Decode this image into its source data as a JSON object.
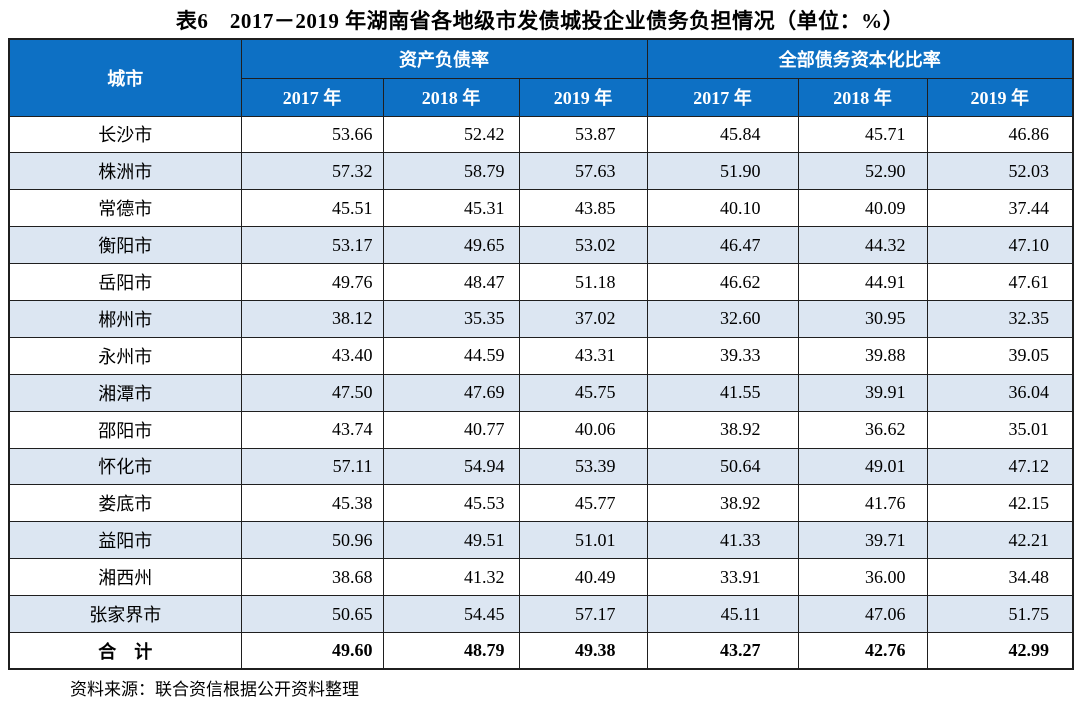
{
  "title": "表6　2017－2019 年湖南省各地级市发债城投企业债务负担情况（单位：%）",
  "source_note": "资料来源：联合资信根据公开资料整理",
  "colors": {
    "header_bg": "#0d70c4",
    "header_text": "#ffffff",
    "row_alt_bg": "#dce6f2",
    "border": "#1f1f1f"
  },
  "table": {
    "city_header": "城市",
    "groups": [
      {
        "label": "资产负债率",
        "years": [
          "2017 年",
          "2018 年",
          "2019 年"
        ]
      },
      {
        "label": "全部债务资本化比率",
        "years": [
          "2017 年",
          "2018 年",
          "2019 年"
        ]
      }
    ],
    "rows": [
      {
        "city": "长沙市",
        "values": [
          "53.66",
          "52.42",
          "53.87",
          "45.84",
          "45.71",
          "46.86"
        ]
      },
      {
        "city": "株洲市",
        "values": [
          "57.32",
          "58.79",
          "57.63",
          "51.90",
          "52.90",
          "52.03"
        ]
      },
      {
        "city": "常德市",
        "values": [
          "45.51",
          "45.31",
          "43.85",
          "40.10",
          "40.09",
          "37.44"
        ]
      },
      {
        "city": "衡阳市",
        "values": [
          "53.17",
          "49.65",
          "53.02",
          "46.47",
          "44.32",
          "47.10"
        ]
      },
      {
        "city": "岳阳市",
        "values": [
          "49.76",
          "48.47",
          "51.18",
          "46.62",
          "44.91",
          "47.61"
        ]
      },
      {
        "city": "郴州市",
        "values": [
          "38.12",
          "35.35",
          "37.02",
          "32.60",
          "30.95",
          "32.35"
        ]
      },
      {
        "city": "永州市",
        "values": [
          "43.40",
          "44.59",
          "43.31",
          "39.33",
          "39.88",
          "39.05"
        ]
      },
      {
        "city": "湘潭市",
        "values": [
          "47.50",
          "47.69",
          "45.75",
          "41.55",
          "39.91",
          "36.04"
        ]
      },
      {
        "city": "邵阳市",
        "values": [
          "43.74",
          "40.77",
          "40.06",
          "38.92",
          "36.62",
          "35.01"
        ]
      },
      {
        "city": "怀化市",
        "values": [
          "57.11",
          "54.94",
          "53.39",
          "50.64",
          "49.01",
          "47.12"
        ]
      },
      {
        "city": "娄底市",
        "values": [
          "45.38",
          "45.53",
          "45.77",
          "38.92",
          "41.76",
          "42.15"
        ]
      },
      {
        "city": "益阳市",
        "values": [
          "50.96",
          "49.51",
          "51.01",
          "41.33",
          "39.71",
          "42.21"
        ]
      },
      {
        "city": "湘西州",
        "values": [
          "38.68",
          "41.32",
          "40.49",
          "33.91",
          "36.00",
          "34.48"
        ]
      },
      {
        "city": "张家界市",
        "values": [
          "50.65",
          "54.45",
          "57.17",
          "45.11",
          "47.06",
          "51.75"
        ]
      }
    ],
    "total_row": {
      "city": "合　计",
      "values": [
        "49.60",
        "48.79",
        "49.38",
        "43.27",
        "42.76",
        "42.99"
      ]
    }
  }
}
